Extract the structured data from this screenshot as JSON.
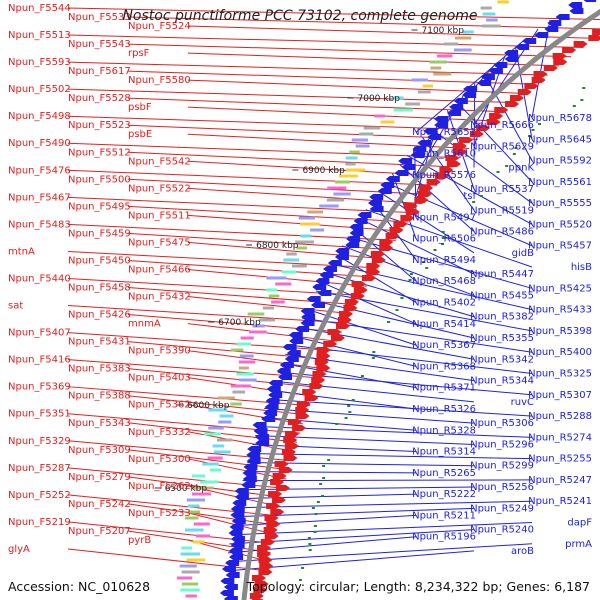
{
  "title": "Nostoc punctiforme PCC 73102, complete genome",
  "footer": {
    "accession": "Accession: NC_010628",
    "topology": "Topology: circular; Length: 8,234,322 bp; Genes: 6,187"
  },
  "colors": {
    "forward": "#e02020",
    "reverse": "#2020e0",
    "backbone": "#888888"
  },
  "ticks": [
    "7100 kbp",
    "7000 kbp",
    "6900 kbp",
    "6800 kbp",
    "6700 kbp",
    "6600 kbp",
    "6500 kbp"
  ],
  "left_labels": [
    "Npun_F5544",
    "Npun_F5533",
    "Npun_F5524",
    "Npun_F5513",
    "Npun_F5543",
    "rpsF",
    "Npun_F5593",
    "Npun_F5617",
    "Npun_F5580",
    "Npun_F5502",
    "Npun_F5528",
    "psbF",
    "Npun_F5498",
    "Npun_F5523",
    "psbE",
    "Npun_F5490",
    "Npun_F5512",
    "Npun_F5542",
    "Npun_F5476",
    "Npun_F5500",
    "Npun_F5522",
    "Npun_F5467",
    "Npun_F5495",
    "Npun_F5511",
    "Npun_F5483",
    "Npun_F5459",
    "Npun_F5475",
    "mtnA",
    "Npun_F5450",
    "Npun_F5466",
    "Npun_F5440",
    "Npun_F5458",
    "Npun_F5432",
    "sat",
    "Npun_F5426",
    "mnmA",
    "Npun_F5407",
    "Npun_F5431",
    "Npun_F5390",
    "Npun_F5416",
    "Npun_F5383",
    "Npun_F5403",
    "Npun_F5369",
    "Npun_F5388",
    "Npun_F5362",
    "Npun_F5351",
    "Npun_F5343",
    "Npun_F5332",
    "Npun_F5329",
    "Npun_F5309",
    "Npun_F5300",
    "Npun_F5287",
    "Npun_F5279",
    "Npun_F5262",
    "Npun_F5252",
    "Npun_F5242",
    "Npun_F5233",
    "Npun_F5219",
    "Npun_F5207",
    "pyrB",
    "glyA"
  ],
  "right_labels": [
    "Npun_R5678",
    "Npun_R5666",
    "Npun_R5651",
    "Npun_R5645",
    "Npun_R5629",
    "Npun_R5610",
    "Npun_R5592",
    "ppnK",
    "Npun_R5576",
    "Npun_R5561",
    "Npun_R5537",
    "tsf",
    "Npun_R5555",
    "Npun_R5519",
    "Npun_R5497",
    "Npun_R5520",
    "Npun_R5486",
    "Npun_R5506",
    "Npun_R5457",
    "gidB",
    "Npun_R5494",
    "hisB",
    "Npun_R5447",
    "Npun_R5468",
    "Npun_R5425",
    "Npun_R5455",
    "Npun_R5402",
    "Npun_R5433",
    "Npun_R5382",
    "Npun_R5414",
    "Npun_R5398",
    "Npun_R5355",
    "Npun_R5367",
    "Npun_R5400",
    "Npun_R5342",
    "Npun_R5368",
    "Npun_R5325",
    "Npun_R5344",
    "Npun_R5371",
    "Npun_R5307",
    "ruvC",
    "Npun_R5326",
    "Npun_R5288",
    "Npun_R5306",
    "Npun_R5328",
    "Npun_R5274",
    "Npun_R5296",
    "Npun_R5314",
    "Npun_R5255",
    "Npun_R5299",
    "Npun_R5265",
    "Npun_R5247",
    "Npun_R5256",
    "Npun_R5222",
    "Npun_R5241",
    "Npun_R5249",
    "Npun_R5211",
    "dapF",
    "Npun_R5240",
    "Npun_R5196",
    "prmA",
    "aroB"
  ]
}
